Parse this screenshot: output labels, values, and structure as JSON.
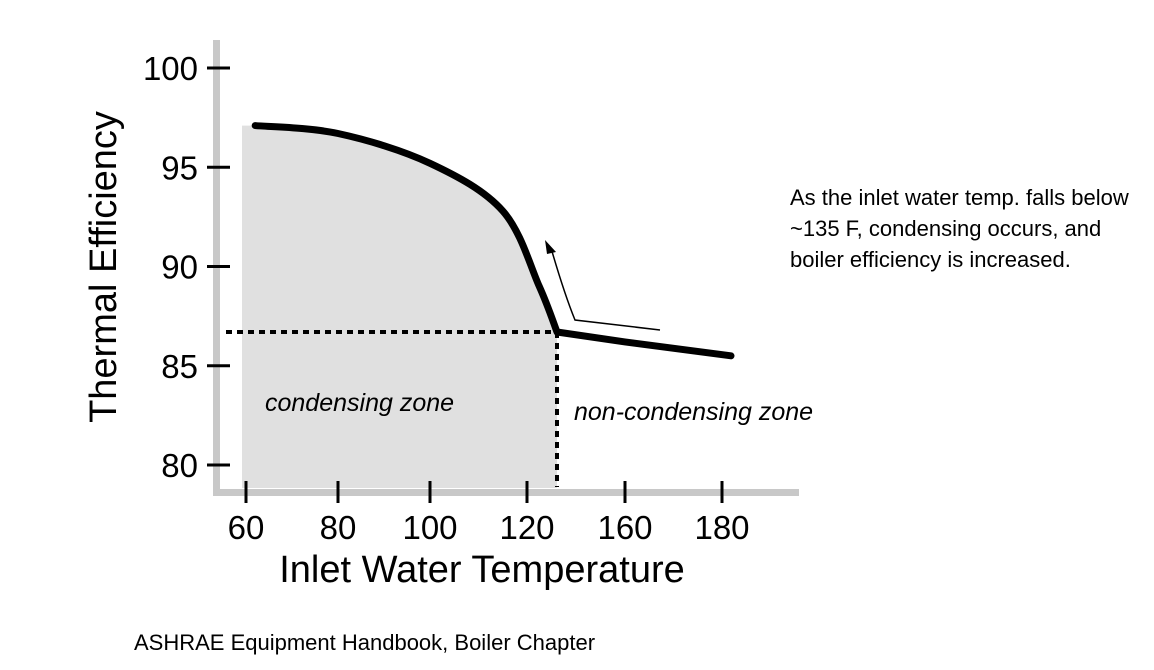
{
  "chart_data": {
    "type": "line",
    "xlabel": "Inlet Water Temperature",
    "ylabel": "Thermal Efficiency",
    "x_ticks": [
      "60",
      "80",
      "100",
      "120",
      "160",
      "180"
    ],
    "y_ticks": [
      "80",
      "85",
      "90",
      "95",
      "100"
    ],
    "ylim": [
      80,
      100
    ],
    "series": [
      {
        "x": [
          "62",
          "80",
          "100",
          "115",
          "125",
          "128",
          "160",
          "182"
        ],
        "y": [
          97.1,
          96.7,
          95.2,
          92.8,
          89.0,
          86.7,
          86.2,
          85.5
        ]
      }
    ],
    "threshold": {
      "x": "128",
      "y": 86.7
    },
    "zones": [
      {
        "label": "condensing zone"
      },
      {
        "label": "non-condensing zone"
      }
    ],
    "annotation": "As the inlet water temp. falls below ~135 F, condensing occurs, and boiler efficiency is increased.",
    "source": "ASHRAE Equipment Handbook, Boiler Chapter",
    "colors": {
      "axis": "#c8c8c8",
      "fill": "#e0e0e0",
      "line": "#000000"
    }
  }
}
